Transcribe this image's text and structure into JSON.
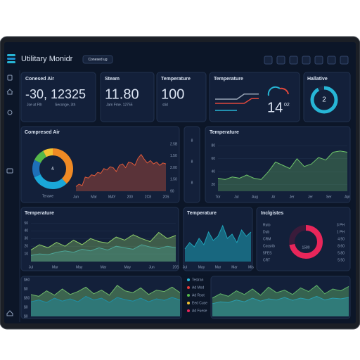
{
  "header": {
    "title": "Utilitary Monidr",
    "badge": "Conesed ug"
  },
  "stat_cards": [
    {
      "title": "Conesed Air",
      "value": "-30, 12325",
      "notes": [
        "Jse at Fth",
        "Seconge, 3th"
      ]
    },
    {
      "title": "Steam",
      "value": "11.80",
      "notes": [
        "Jam Fme. 12755"
      ]
    },
    {
      "title": "Temperature",
      "value": "100",
      "notes": [
        "stid"
      ]
    }
  ],
  "temp_mini": {
    "title": "Temperature",
    "value": "14",
    "sup": "02",
    "series": [
      {
        "color": "#9aa6b8",
        "values": [
          60,
          60,
          60,
          60,
          78,
          78,
          78
        ]
      },
      {
        "color": "#e0483c",
        "values": [
          45,
          45,
          45,
          45,
          45,
          62,
          62
        ]
      },
      {
        "color": "#27b6d6",
        "values": [
          20,
          20,
          20,
          20
        ]
      }
    ]
  },
  "hallative": {
    "title": "Hallative",
    "center": "2",
    "values": [
      92,
      8
    ],
    "colors": [
      "#27b6d6",
      "#1c2a44"
    ]
  },
  "compressed": {
    "title": "Compresed Air",
    "donut": {
      "label": "Terawe",
      "center": "&",
      "values": [
        38,
        30,
        14,
        10,
        8
      ],
      "colors": [
        "#f08a24",
        "#1aa7d8",
        "#1e6fb8",
        "#55b849",
        "#f2c232"
      ]
    },
    "x_labels": [
      "Jun",
      "Mar",
      "MAY",
      "200",
      "2C8",
      "20S"
    ],
    "y_labels": [
      "2.5B",
      "1.50",
      "2.00",
      "1.50",
      "90"
    ],
    "ylim": [
      0,
      100
    ],
    "series": [
      {
        "color": "#e05a3a",
        "values": [
          10,
          15,
          12,
          30,
          28,
          35,
          33,
          40,
          38,
          48,
          45,
          52,
          50,
          42,
          55,
          58,
          50,
          62,
          60,
          55,
          70,
          78,
          68,
          60,
          65,
          58,
          62,
          55,
          60,
          58
        ]
      }
    ]
  },
  "side_card": {
    "labels": [
      "8",
      "8",
      "8"
    ]
  },
  "temp_right": {
    "title": "Temperature",
    "ylim": [
      10,
      90
    ],
    "yticks": [
      20,
      40,
      60,
      80
    ],
    "x_labels": [
      "Tor",
      "Jul",
      "Aug",
      "Ar",
      "Jer",
      "Jer",
      "Ser",
      "Apr"
    ],
    "series": [
      {
        "color": "#6ec46a",
        "values": [
          30,
          28,
          32,
          30,
          35,
          30,
          28,
          40,
          55,
          50,
          45,
          60,
          48,
          52,
          62,
          58,
          70,
          72,
          70
        ]
      }
    ]
  },
  "temp_row3": {
    "title": "Temperature",
    "ylim": [
      0,
      55
    ],
    "yticks": [
      10,
      20,
      30,
      40,
      50
    ],
    "x_labels": [
      "Jul",
      "Mar",
      "May",
      "Mar",
      "May",
      "Jun",
      "20S"
    ],
    "series": [
      {
        "color": "#2a8fb0",
        "values": [
          8,
          10,
          9,
          12,
          14,
          12,
          16,
          14,
          18,
          15,
          20,
          18,
          16,
          22,
          19,
          17,
          20,
          18
        ]
      },
      {
        "color": "#8fcf6a",
        "values": [
          15,
          22,
          18,
          25,
          20,
          28,
          22,
          30,
          26,
          24,
          32,
          28,
          35,
          30,
          26,
          38,
          30,
          34
        ]
      }
    ]
  },
  "temp_mid": {
    "title": "Temperature",
    "ylim": [
      0,
      100
    ],
    "x_labels": [
      "Jul",
      "May",
      "Mar",
      "Mar",
      "Mis"
    ],
    "series": [
      {
        "color": "#1ea3b8",
        "values": [
          30,
          45,
          35,
          55,
          40,
          70,
          50,
          60,
          85,
          55,
          65,
          45,
          75,
          60,
          70
        ]
      }
    ]
  },
  "logistics": {
    "title": "Inclgistes",
    "center": "1580",
    "values": [
      72,
      28
    ],
    "colors": [
      "#e8265a",
      "#3a1b3a"
    ],
    "left_labels": [
      "Ruto",
      "Dub",
      "CRM",
      "Cossrib",
      "5FES",
      "CRT"
    ],
    "right_labels": [
      "3 PH",
      "1 PH",
      "4.50",
      "8.60",
      "5.80",
      "5.50"
    ]
  },
  "bottom_left": {
    "ylim": [
      0,
      100
    ],
    "y_labels": [
      "$60",
      "$0",
      "$50",
      "$0",
      "$0"
    ],
    "series": [
      {
        "color": "#6fb86a",
        "values": [
          60,
          55,
          70,
          58,
          75,
          60,
          68,
          80,
          62,
          72,
          58,
          85,
          70,
          65,
          78,
          60,
          72,
          68,
          80,
          65
        ]
      },
      {
        "color": "#1e8fa8",
        "values": [
          40,
          45,
          38,
          50,
          42,
          48,
          40,
          55,
          45,
          50,
          38,
          52,
          46,
          42,
          50,
          40,
          48,
          44,
          52,
          45
        ]
      }
    ]
  },
  "legend": {
    "items": [
      {
        "name": "Testran",
        "color": "#27b6d6"
      },
      {
        "name": "Ad Mod",
        "color": "#e63a3a"
      },
      {
        "name": "Ad Rost",
        "color": "#55b849"
      },
      {
        "name": "Eed Cuse",
        "color": "#f2c232"
      },
      {
        "name": "Ad Fuese",
        "color": "#e8265a"
      }
    ]
  },
  "bottom_right": {
    "ylim": [
      0,
      100
    ],
    "series": [
      {
        "color": "#5fb36a",
        "values": [
          50,
          62,
          55,
          70,
          60,
          75,
          58,
          80,
          65,
          72,
          60,
          78,
          68,
          85,
          62,
          75,
          70,
          82
        ]
      },
      {
        "color": "#2a9cae",
        "values": [
          35,
          40,
          38,
          45,
          40,
          50,
          42,
          48,
          45,
          52,
          44,
          50,
          46,
          55,
          45,
          50,
          48,
          52
        ]
      }
    ]
  }
}
